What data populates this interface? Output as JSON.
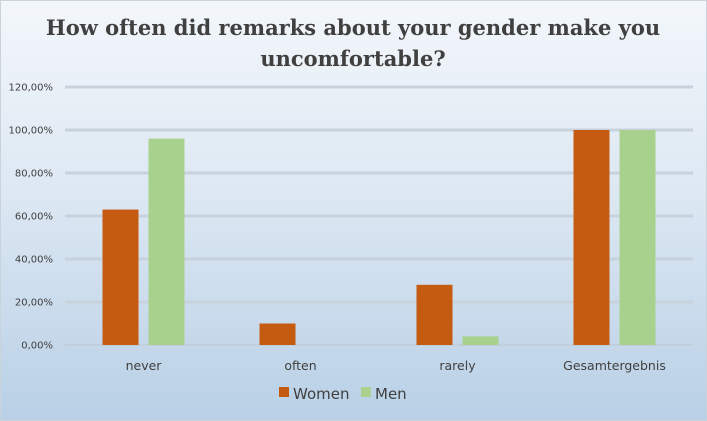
{
  "chart_data": {
    "type": "bar",
    "title_lines": [
      "How often did remarks about your gender make you",
      "uncomfortable?"
    ],
    "categories": [
      "never",
      "often",
      "rarely",
      "Gesamtergebnis"
    ],
    "series": [
      {
        "name": "Women",
        "values": [
          0.63,
          0.1,
          0.28,
          1.0
        ],
        "color": "#C55A11"
      },
      {
        "name": "Men",
        "values": [
          0.96,
          0.0,
          0.04,
          1.0
        ],
        "color": "#A9D18E"
      }
    ],
    "ylim": [
      0,
      1.2
    ],
    "yticks": [
      "0,00%",
      "20,00%",
      "40,00%",
      "60,00%",
      "80,00%",
      "100,00%",
      "120,00%"
    ],
    "grid": true,
    "legend_position": "bottom"
  }
}
